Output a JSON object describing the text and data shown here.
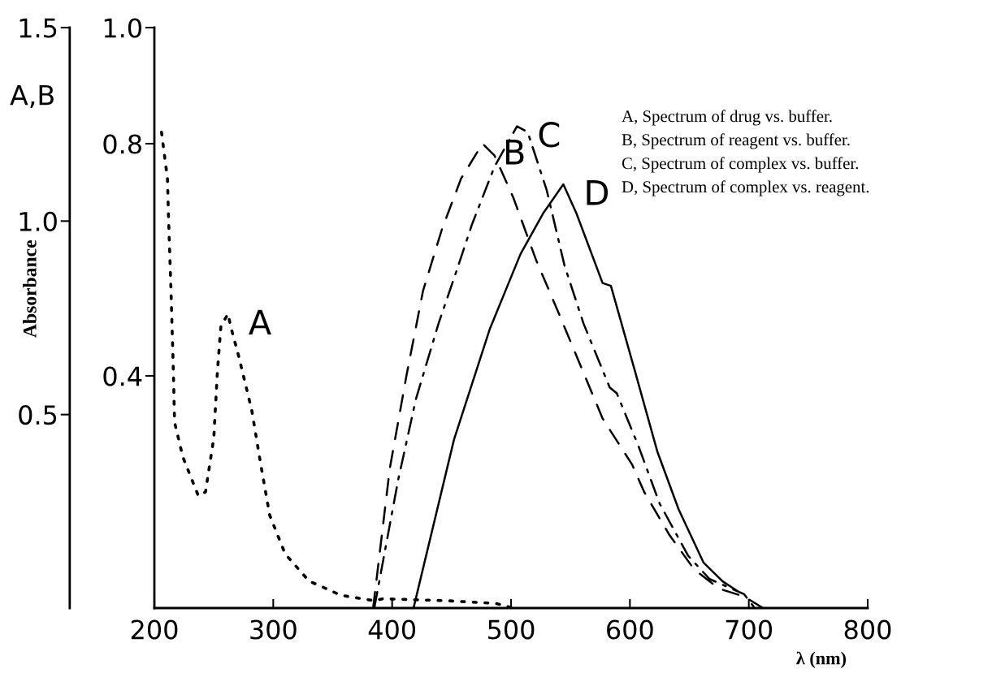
{
  "chart_data": {
    "type": "line",
    "xlabel": "λ (nm)",
    "y2label": "Absorbance",
    "xlim": [
      200,
      800
    ],
    "xticks": [
      200,
      300,
      400,
      500,
      600,
      700,
      800
    ],
    "ylim": [
      0,
      1.0
    ],
    "yticks": [
      0.4,
      0.8,
      {
        "value": 1.0,
        "label": "1.0"
      }
    ],
    "y2lim": [
      0,
      1.5
    ],
    "y2ticks": [
      0.5,
      {
        "value": 1.0,
        "label": "1.0"
      },
      1.5
    ],
    "grid": false,
    "marker": "none",
    "annotations": [
      "A,B",
      "A, Spectrum of drug vs. buffer.",
      "B, Spectrum of reagent vs. buffer.",
      "C, Spectrum of complex vs. buffer.",
      "D, Spectrum of complex vs. reagent."
    ],
    "series": [
      {
        "name": "A",
        "color": "#000000",
        "axis": "y2",
        "line_style": "dotted",
        "x": [
          206,
          211,
          212,
          214,
          216,
          217,
          224,
          237,
          243,
          250,
          253,
          256,
          262,
          264,
          271,
          282,
          289,
          297,
          310,
          330,
          357,
          385,
          392,
          446,
          487,
          502
        ],
        "values": [
          1.23,
          1.11,
          1.0,
          0.82,
          0.61,
          0.48,
          0.39,
          0.29,
          0.3,
          0.44,
          0.61,
          0.73,
          0.76,
          0.73,
          0.65,
          0.51,
          0.38,
          0.24,
          0.14,
          0.07,
          0.033,
          0.019,
          0.024,
          0.019,
          0.012,
          0
        ]
      },
      {
        "name": "B",
        "color": "#000000",
        "axis": "y2",
        "line_style": "dashed",
        "x": [
          384,
          398,
          412,
          426,
          442,
          458,
          476,
          486,
          502,
          521,
          539,
          558,
          577,
          602,
          612,
          633,
          654,
          675,
          696,
          712
        ],
        "values": [
          0,
          0.36,
          0.6,
          0.82,
          0.98,
          1.11,
          1.2,
          1.17,
          1.06,
          0.9,
          0.77,
          0.63,
          0.49,
          0.37,
          0.3,
          0.19,
          0.1,
          0.05,
          0.03,
          0
        ]
      },
      {
        "name": "C",
        "color": "#000000",
        "line_style": "dashdot",
        "x": [
          385,
          405,
          420,
          439,
          454,
          467,
          486,
          505,
          514,
          530,
          545,
          561,
          583,
          589,
          607,
          625,
          649,
          667,
          696,
          705
        ],
        "values": [
          0,
          0.22,
          0.36,
          0.49,
          0.58,
          0.66,
          0.76,
          0.83,
          0.82,
          0.72,
          0.59,
          0.49,
          0.38,
          0.37,
          0.28,
          0.18,
          0.09,
          0.05,
          0.024,
          0
        ]
      },
      {
        "name": "D",
        "color": "#000000",
        "line_style": "solid",
        "x": [
          418,
          452,
          482,
          508,
          527,
          544,
          555,
          577,
          584,
          604,
          623,
          641,
          662,
          678,
          690
        ],
        "values": [
          0,
          0.29,
          0.48,
          0.61,
          0.68,
          0.73,
          0.68,
          0.56,
          0.555,
          0.41,
          0.27,
          0.17,
          0.078,
          0.046,
          0.03
        ]
      }
    ]
  }
}
